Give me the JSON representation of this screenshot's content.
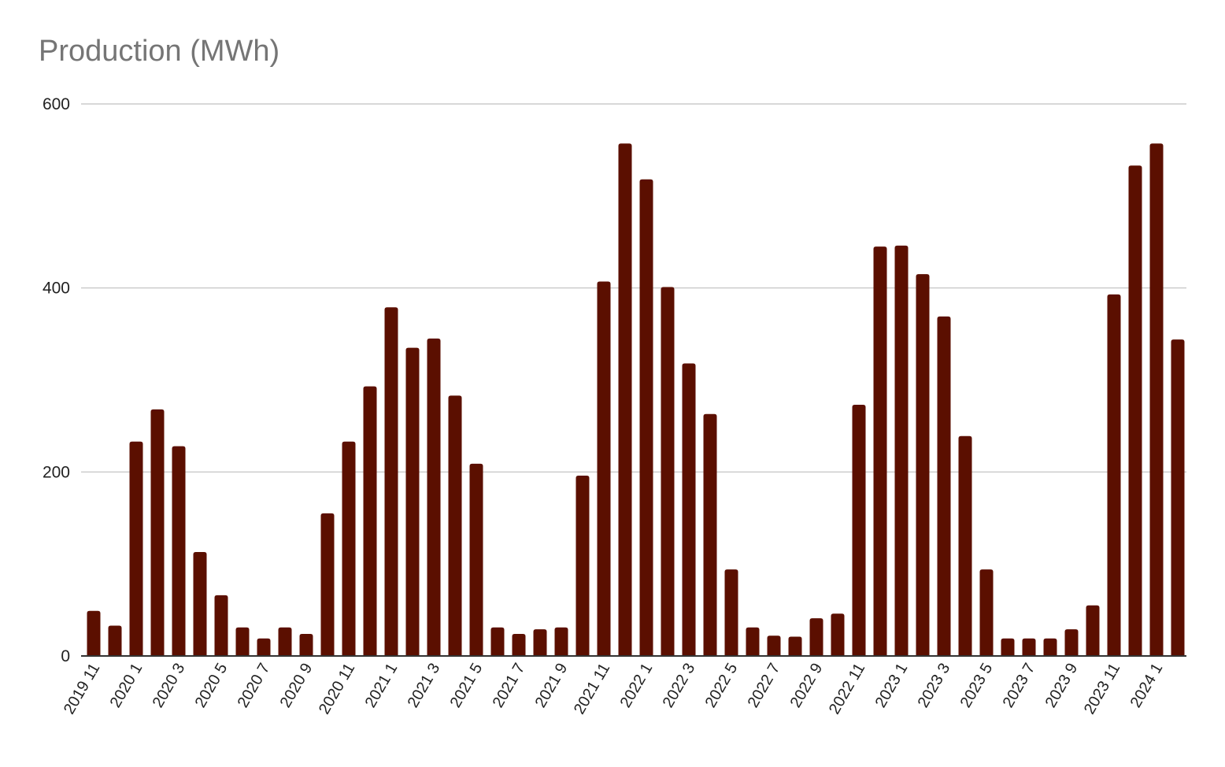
{
  "chart_data": {
    "type": "bar",
    "title": "Production (MWh)",
    "xlabel": "",
    "ylabel": "",
    "ylim": [
      0,
      600
    ],
    "yticks": [
      0,
      200,
      400,
      600
    ],
    "grid": true,
    "bar_color": "#5b0f00",
    "categories": [
      "2019 11",
      "2019 12",
      "2020 1",
      "2020 2",
      "2020 3",
      "2020 4",
      "2020 5",
      "2020 6",
      "2020 7",
      "2020 8",
      "2020 9",
      "2020 10",
      "2020 11",
      "2020 12",
      "2021 1",
      "2021 2",
      "2021 3",
      "2021 4",
      "2021 5",
      "2021 6",
      "2021 7",
      "2021 8",
      "2021 9",
      "2021 10",
      "2021 11",
      "2021 12",
      "2022 1",
      "2022 2",
      "2022 3",
      "2022 4",
      "2022 5",
      "2022 6",
      "2022 7",
      "2022 8",
      "2022 9",
      "2022 10",
      "2022 11",
      "2022 12",
      "2023 1",
      "2023 2",
      "2023 3",
      "2023 4",
      "2023 5",
      "2023 6",
      "2023 7",
      "2023 8",
      "2023 9",
      "2023 10",
      "2023 11",
      "2023 12",
      "2024 1",
      "2024 2"
    ],
    "shown_labels": [
      "2019 11",
      "2020 1",
      "2020 3",
      "2020 5",
      "2020 7",
      "2020 9",
      "2020 11",
      "2021 1",
      "2021 3",
      "2021 5",
      "2021 7",
      "2021 9",
      "2021 11",
      "2022 1",
      "2022 3",
      "2022 5",
      "2022 7",
      "2022 9",
      "2022 11",
      "2023 1",
      "2023 3",
      "2023 5",
      "2023 7",
      "2023 9",
      "2023 11",
      "2024 1"
    ],
    "values": [
      49,
      33,
      233,
      268,
      228,
      113,
      66,
      31,
      19,
      31,
      24,
      155,
      233,
      293,
      379,
      335,
      345,
      283,
      209,
      31,
      24,
      29,
      31,
      196,
      407,
      557,
      518,
      401,
      318,
      263,
      94,
      31,
      22,
      21,
      41,
      46,
      273,
      445,
      446,
      415,
      369,
      239,
      94,
      19,
      19,
      19,
      29,
      55,
      393,
      533,
      557,
      344
    ]
  }
}
